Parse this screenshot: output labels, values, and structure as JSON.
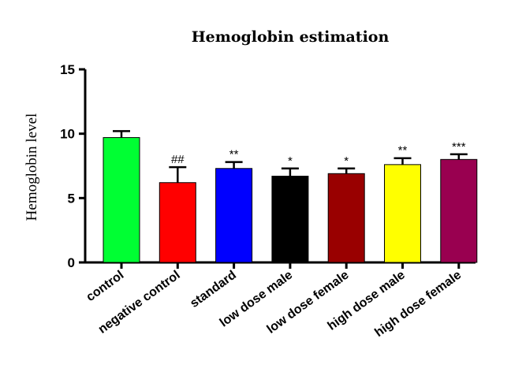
{
  "chart_data": {
    "type": "bar",
    "title": "Hemoglobin estimation",
    "xlabel": "",
    "ylabel": "Hemoglobin level",
    "ylim": [
      0,
      15
    ],
    "yticks": [
      "0",
      "5",
      "10",
      "15"
    ],
    "grid": false,
    "categories": [
      "control",
      "negative control",
      "standard",
      "low dose male",
      "low dose female",
      "high dose male",
      "high dose female"
    ],
    "values": [
      9.7,
      6.2,
      7.3,
      6.7,
      6.9,
      7.6,
      8.0
    ],
    "errors": [
      0.5,
      1.2,
      0.5,
      0.6,
      0.4,
      0.5,
      0.4
    ],
    "annotations": [
      "",
      "##",
      "**",
      "*",
      "*",
      "**",
      "***"
    ],
    "colors": [
      "#00ff33",
      "#ff0000",
      "#0000ff",
      "#000000",
      "#990000",
      "#ffff00",
      "#990050"
    ]
  }
}
